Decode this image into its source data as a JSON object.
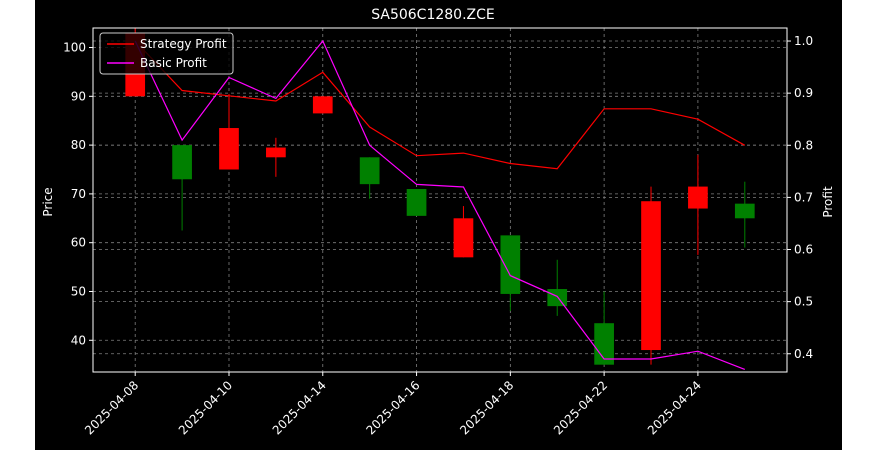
{
  "chart_data": {
    "type": "candlestick",
    "title": "SA506C1280.ZCE",
    "xlabel": "",
    "ylabel_left": "Price",
    "ylabel_right": "Profit",
    "ylim_left": [
      33.5,
      104
    ],
    "ylim_right": [
      0.365,
      1.025
    ],
    "left_ticks": [
      40,
      50,
      60,
      70,
      80,
      90,
      100
    ],
    "right_ticks": [
      "0.4",
      "0.5",
      "0.6",
      "0.7",
      "0.8",
      "0.9",
      "1.0"
    ],
    "x_tick_labels": [
      "2025-04-08",
      "2025-04-10",
      "2025-04-14",
      "2025-04-16",
      "2025-04-18",
      "2025-04-22",
      "2025-04-24"
    ],
    "x_tick_index": [
      0,
      2,
      4,
      6,
      8,
      10,
      12
    ],
    "grid": true,
    "legend_position": "top-left",
    "candles": [
      {
        "open": 90,
        "close": 103,
        "high": 104,
        "low": 90
      },
      {
        "open": 80,
        "close": 73,
        "high": 80,
        "low": 62.5
      },
      {
        "open": 75,
        "close": 83.5,
        "high": 90.5,
        "low": 75
      },
      {
        "open": 77.5,
        "close": 79.5,
        "high": 81.5,
        "low": 73.5
      },
      {
        "open": 86.5,
        "close": 90,
        "high": 90,
        "low": 86.5
      },
      {
        "open": 77.5,
        "close": 72,
        "high": 77.5,
        "low": 69
      },
      {
        "open": 71,
        "close": 65.5,
        "high": 71,
        "low": 65.5
      },
      {
        "open": 57,
        "close": 65,
        "high": 67.5,
        "low": 57
      },
      {
        "open": 61.5,
        "close": 49.5,
        "high": 61.5,
        "low": 46
      },
      {
        "open": 50.5,
        "close": 47,
        "high": 56.5,
        "low": 45
      },
      {
        "open": 43.5,
        "close": 35,
        "high": 50,
        "low": 35
      },
      {
        "open": 38,
        "close": 68.5,
        "high": 71.5,
        "low": 35
      },
      {
        "open": 67,
        "close": 71.5,
        "high": 78,
        "low": 57.5
      },
      {
        "open": 68,
        "close": 65,
        "high": 72.5,
        "low": 59
      }
    ],
    "series": [
      {
        "name": "Strategy Profit",
        "color": "#ff0000",
        "values": [
          1.0,
          0.905,
          0.895,
          0.885,
          0.94,
          0.835,
          0.78,
          0.785,
          0.765,
          0.755,
          0.87,
          0.87,
          0.85,
          0.8
        ]
      },
      {
        "name": "Basic Profit",
        "color": "#ff00ff",
        "values": [
          1.0,
          0.81,
          0.93,
          0.89,
          1.0,
          0.8,
          0.725,
          0.72,
          0.55,
          0.51,
          0.39,
          0.39,
          0.405,
          0.37
        ]
      }
    ],
    "colors": {
      "up": "#ff0000",
      "down": "#008000",
      "grid": "#7f7f7f",
      "axes": "#ffffff"
    }
  }
}
